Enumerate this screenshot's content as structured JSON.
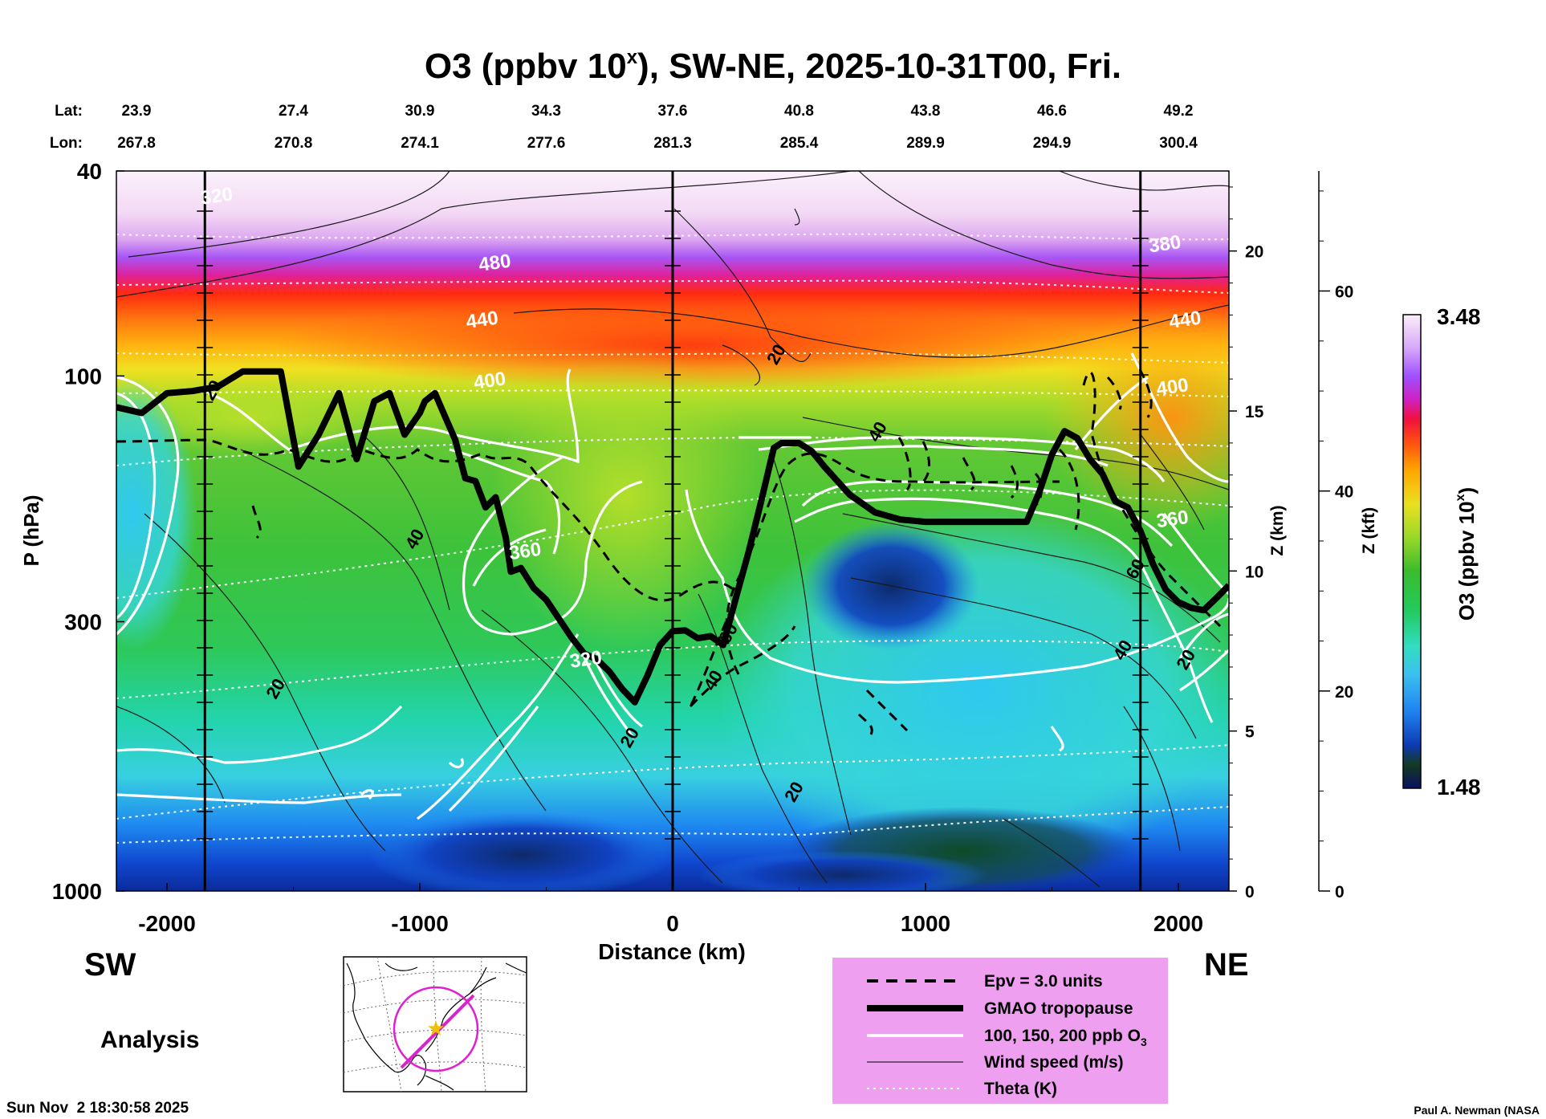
{
  "chart_data": {
    "type": "heatmap",
    "title": "O3 (ppbv 10^x), SW-NE, 2025-10-31T00, Fri.",
    "title_parts": {
      "main": "O3 (ppbv 10",
      "sup": "x",
      "rest": "), SW-NE, 2025-10-31T00, Fri."
    },
    "lat_label": "Lat:",
    "lon_label": "Lon:",
    "lat_values": [
      "23.9",
      "27.4",
      "30.9",
      "34.3",
      "37.6",
      "40.8",
      "43.8",
      "46.6",
      "49.2"
    ],
    "lon_values": [
      "267.8",
      "270.8",
      "274.1",
      "277.6",
      "281.3",
      "285.4",
      "289.9",
      "294.9",
      "300.4"
    ],
    "latlon_distance_km": [
      -2000,
      -1500,
      -1000,
      -500,
      0,
      500,
      1000,
      1500,
      2000
    ],
    "x_axis": {
      "label": "Distance (km)",
      "range": [
        -2200,
        2200
      ],
      "ticks": [
        "-2000",
        "-1000",
        "0",
        "1000",
        "2000"
      ],
      "tick_values": [
        -2000,
        -1000,
        0,
        1000,
        2000
      ]
    },
    "y_axis": {
      "label": "P (hPa)",
      "range": [
        40,
        1000
      ],
      "scale": "log",
      "ticks": [
        "40",
        "100",
        "300",
        "1000"
      ],
      "tick_values": [
        40,
        100,
        300,
        1000
      ]
    },
    "z_km_axis": {
      "label": "Z (km)",
      "range": [
        0,
        22.5
      ],
      "ticks": [
        "0",
        "5",
        "10",
        "15",
        "20"
      ],
      "tick_values": [
        0,
        5,
        10,
        15,
        20
      ]
    },
    "z_kft_axis": {
      "label": "Z (kft)",
      "range": [
        0,
        72
      ],
      "ticks": [
        "0",
        "20",
        "40",
        "60"
      ],
      "tick_values": [
        0,
        20,
        40,
        60
      ]
    },
    "colorbar": {
      "label_main": "O3 (ppbv 10",
      "label_sup": "x",
      "label_rest": ")",
      "min_label": "1.48",
      "max_label": "3.48",
      "min": 1.48,
      "max": 3.48,
      "colors": [
        "#0a1060",
        "#0b3a1c",
        "#184e24",
        "#0d3ab0",
        "#1560e0",
        "#1e90ff",
        "#3cc0f0",
        "#40e0d0",
        "#19d9a0",
        "#22c95a",
        "#18b83a",
        "#46c22e",
        "#7fd02c",
        "#b4e02a",
        "#e8e020",
        "#ffcc10",
        "#ffa000",
        "#ff7010",
        "#ff3010",
        "#e8104a",
        "#e020a0",
        "#c030e0",
        "#a050ff",
        "#c890ff",
        "#e8c0f8",
        "#f8e8fb"
      ]
    },
    "vertical_markers_km": [
      -1850,
      0,
      1850
    ],
    "ozone_field_rows_hPa": [
      40,
      60,
      75,
      85,
      100,
      130,
      160,
      200,
      250,
      300,
      400,
      500,
      650,
      800,
      1000
    ],
    "theta_labels": [
      {
        "text": "480",
        "x_km": -700,
        "p": 62
      },
      {
        "text": "440",
        "x_km": -750,
        "p": 80
      },
      {
        "text": "400",
        "x_km": -720,
        "p": 105
      },
      {
        "text": "360",
        "x_km": -580,
        "p": 225
      },
      {
        "text": "320",
        "x_km": -340,
        "p": 365
      },
      {
        "text": "440",
        "x_km": 2030,
        "p": 80
      },
      {
        "text": "400",
        "x_km": 1980,
        "p": 108
      },
      {
        "text": "360",
        "x_km": 1980,
        "p": 195
      },
      {
        "text": "320",
        "x_km": -1800,
        "p": 46
      },
      {
        "text": "380",
        "x_km": 1950,
        "p": 57
      }
    ],
    "wind_labels": [
      {
        "text": "20",
        "x_km": 430,
        "p": 92
      },
      {
        "text": "40",
        "x_km": 830,
        "p": 130
      },
      {
        "text": "40",
        "x_km": -1000,
        "p": 210
      },
      {
        "text": "20",
        "x_km": -1550,
        "p": 410
      },
      {
        "text": "20",
        "x_km": -150,
        "p": 510
      },
      {
        "text": "20",
        "x_km": 500,
        "p": 650
      },
      {
        "text": "40",
        "x_km": 1800,
        "p": 345
      },
      {
        "text": "60",
        "x_km": 1850,
        "p": 240
      },
      {
        "text": "60",
        "x_km": 240,
        "p": 320
      },
      {
        "text": "40",
        "x_km": 180,
        "p": 395
      },
      {
        "text": "20",
        "x_km": 2050,
        "p": 360
      },
      {
        "text": "20",
        "x_km": -1800,
        "p": 108
      }
    ],
    "tropopause": {
      "x_km": [
        -2200,
        -2100,
        -2000,
        -1900,
        -1800,
        -1700,
        -1550,
        -1480,
        -1400,
        -1320,
        -1250,
        -1180,
        -1120,
        -1060,
        -1000,
        -980,
        -940,
        -900,
        -860,
        -820,
        -780,
        -740,
        -700,
        -660,
        -640,
        -600,
        -550,
        -500,
        -450,
        -400,
        -350,
        -300,
        -250,
        -200,
        -150,
        -100,
        -50,
        0,
        50,
        100,
        150,
        200,
        250,
        300,
        350,
        400,
        430,
        450,
        500,
        550,
        600,
        700,
        800,
        900,
        1000,
        1100,
        1200,
        1300,
        1400,
        1450,
        1500,
        1550,
        1600,
        1650,
        1700,
        1750,
        1800,
        1850,
        1900,
        1950,
        2000,
        2050,
        2100,
        2150,
        2200
      ],
      "p_hPa": [
        115,
        118,
        108,
        107,
        105,
        98,
        98,
        150,
        130,
        108,
        145,
        112,
        108,
        130,
        118,
        112,
        108,
        120,
        133,
        158,
        160,
        180,
        172,
        206,
        240,
        236,
        258,
        272,
        296,
        322,
        346,
        355,
        375,
        405,
        430,
        382,
        333,
        313,
        312,
        323,
        320,
        333,
        270,
        220,
        175,
        138,
        135,
        135,
        135,
        140,
        150,
        170,
        184,
        190,
        192,
        192,
        192,
        192,
        192,
        168,
        142,
        128,
        132,
        145,
        155,
        175,
        180,
        200,
        232,
        260,
        275,
        282,
        285,
        270,
        255
      ]
    },
    "series_legend": [
      {
        "name": "Epv = 3.0 units",
        "style": "dashed"
      },
      {
        "name": "GMAO tropopause",
        "style": "thick-solid"
      },
      {
        "name": "100, 150, 200 ppb O3",
        "style": "white-solid"
      },
      {
        "name": "Wind speed (m/s)",
        "style": "thin-solid"
      },
      {
        "name": "Theta (K)",
        "style": "white-dotted"
      }
    ]
  },
  "legend": {
    "epv": "Epv = 3.0 units",
    "trop": "GMAO tropopause",
    "o3": "100, 150, 200 ppb O",
    "o3_sub": "3",
    "wind": "Wind speed (m/s)",
    "theta": "Theta (K)",
    "bg_color": "#ee9ff0"
  },
  "labels": {
    "sw": "SW",
    "ne": "NE",
    "analysis": "Analysis",
    "timestamp": "Sun Nov  2 18:30:58 2025",
    "credit": "Paul A. Newman (NASA"
  },
  "map": {
    "route_color": "#e020d0",
    "star_color": "#f0c000"
  }
}
